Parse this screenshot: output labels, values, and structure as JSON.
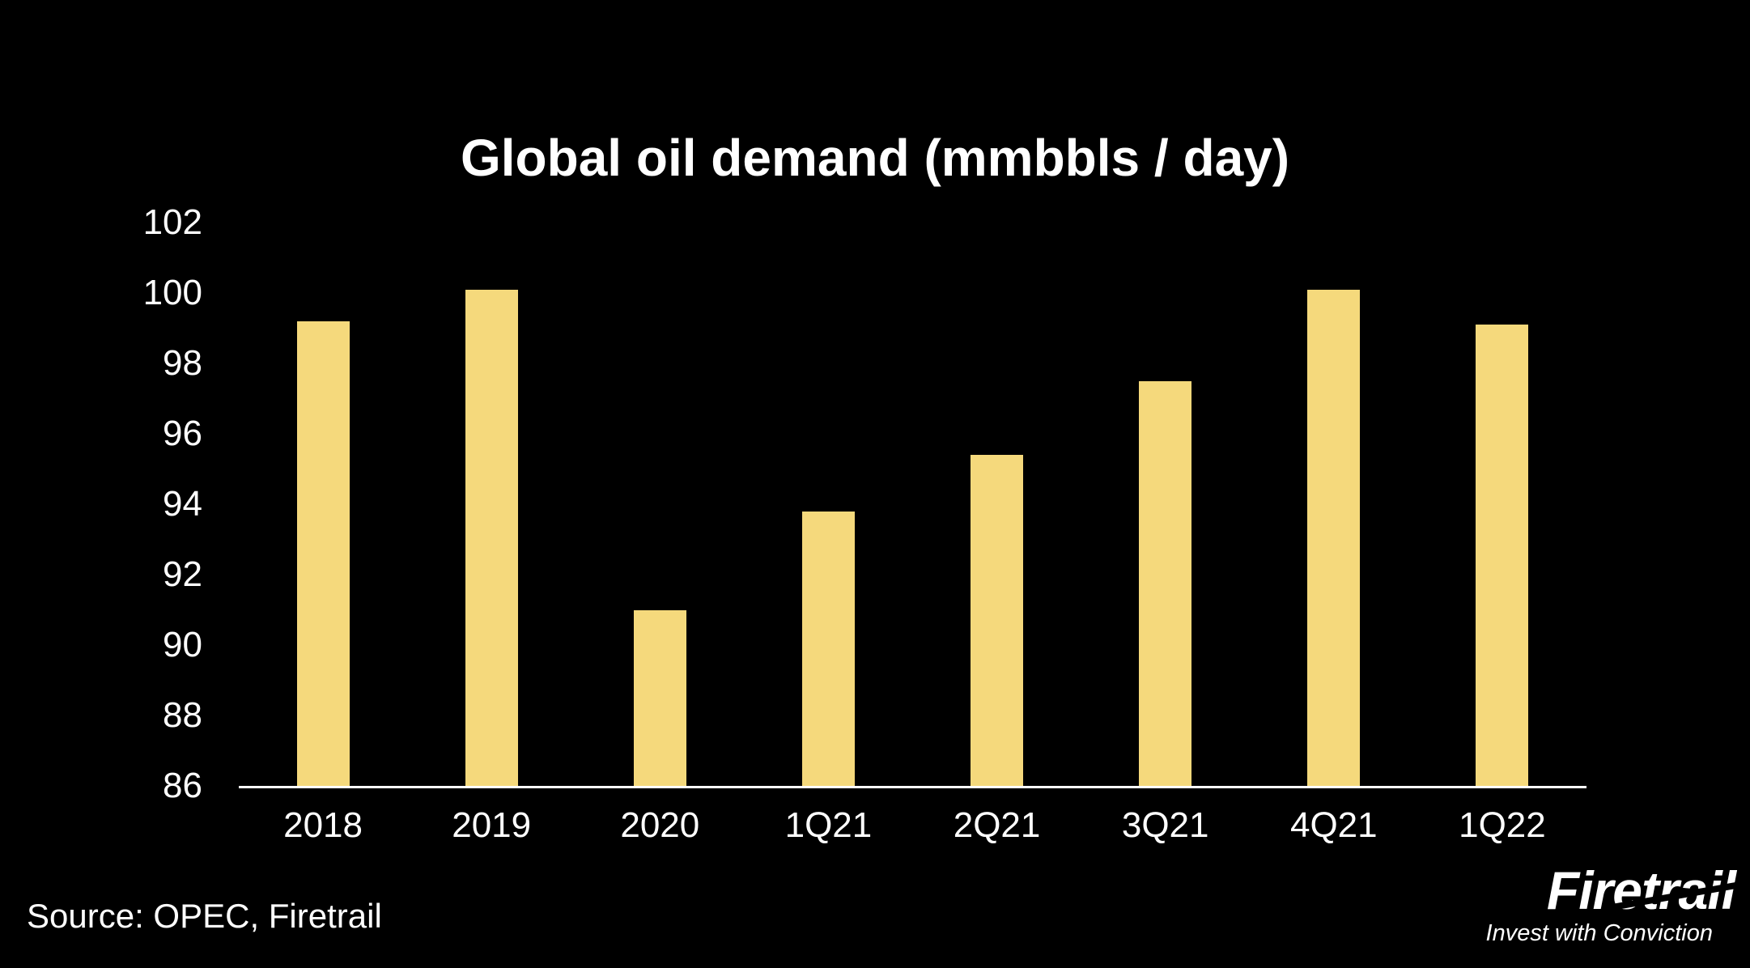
{
  "slide": {
    "source_note": "Source: OPEC, Firetrail",
    "logo": {
      "wordmark": "Firetrail",
      "tagline": "Invest with Conviction"
    }
  },
  "colors": {
    "background": "#000000",
    "bar": "#F5D97C",
    "text": "#FFFFFF",
    "axis": "#FFFFFF"
  },
  "chart_data": {
    "type": "bar",
    "title": "Global oil demand (mmbbls / day)",
    "categories": [
      "2018",
      "2019",
      "2020",
      "1Q21",
      "2Q21",
      "3Q21",
      "4Q21",
      "1Q22"
    ],
    "values": [
      99.2,
      100.1,
      91.0,
      93.8,
      95.4,
      97.5,
      100.1,
      99.1
    ],
    "xlabel": "",
    "ylabel": "",
    "ylim": [
      86,
      102
    ],
    "yticks": [
      86,
      88,
      90,
      92,
      94,
      96,
      98,
      100,
      102
    ],
    "grid": false,
    "legend": false,
    "legend_position": "none"
  }
}
